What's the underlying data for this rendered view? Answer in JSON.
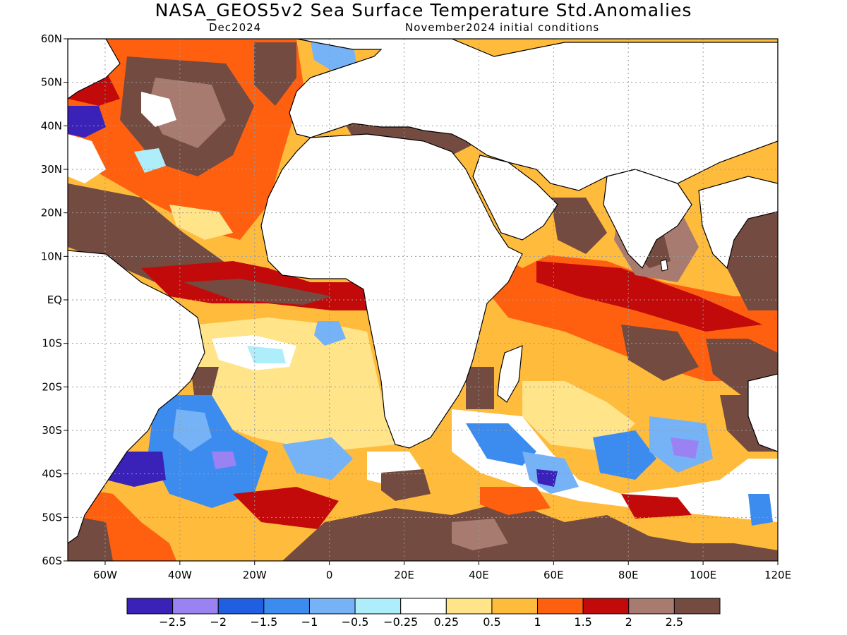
{
  "header": {
    "title": "NASA_GEOS5v2 Sea Surface Temperature Std.Anomalies",
    "forecast_month": "Dec2024",
    "initial_conditions": "November2024 initial conditions"
  },
  "map": {
    "lon_range": [
      -70,
      120
    ],
    "lat_range": [
      -60,
      60
    ],
    "lat_ticks": [
      {
        "value": 60,
        "label": "60N"
      },
      {
        "value": 50,
        "label": "50N"
      },
      {
        "value": 40,
        "label": "40N"
      },
      {
        "value": 30,
        "label": "30N"
      },
      {
        "value": 20,
        "label": "20N"
      },
      {
        "value": 10,
        "label": "10N"
      },
      {
        "value": 0,
        "label": "EQ"
      },
      {
        "value": -10,
        "label": "10S"
      },
      {
        "value": -20,
        "label": "20S"
      },
      {
        "value": -30,
        "label": "30S"
      },
      {
        "value": -40,
        "label": "40S"
      },
      {
        "value": -50,
        "label": "50S"
      },
      {
        "value": -60,
        "label": "60S"
      }
    ],
    "lon_ticks": [
      {
        "value": -60,
        "label": "60W"
      },
      {
        "value": -40,
        "label": "40W"
      },
      {
        "value": -20,
        "label": "20W"
      },
      {
        "value": 0,
        "label": "0"
      },
      {
        "value": 20,
        "label": "20E"
      },
      {
        "value": 40,
        "label": "40E"
      },
      {
        "value": 60,
        "label": "60E"
      },
      {
        "value": 80,
        "label": "80E"
      },
      {
        "value": 100,
        "label": "100E"
      },
      {
        "value": 120,
        "label": "120E"
      }
    ],
    "grid": true,
    "land_color": "#ffffff",
    "coastline_color": "#000000"
  },
  "colorbar": {
    "colors": [
      "#3a22b8",
      "#9b82f2",
      "#1f5fe0",
      "#3c8cf0",
      "#76b2f6",
      "#aeeefa",
      "#ffffff",
      "#ffe48a",
      "#ffbb3c",
      "#ff6010",
      "#c20a0a",
      "#a87b70",
      "#734b40"
    ],
    "labels": [
      "−2.5",
      "−2",
      "−1.5",
      "−1",
      "−0.5",
      "−0.25",
      "0.25",
      "0.5",
      "1",
      "1.5",
      "2",
      "2.5"
    ]
  }
}
